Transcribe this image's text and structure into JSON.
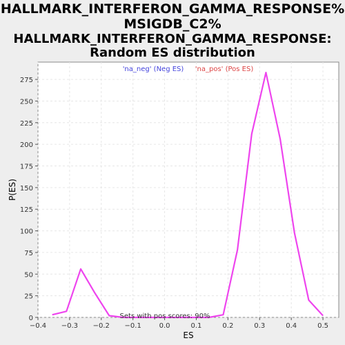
{
  "titles": {
    "line1": "HALLMARK_INTERFERON_GAMMA_RESPONSE%",
    "line2": "MSIGDB_C2%",
    "line3": "HALLMARK_INTERFERON_GAMMA_RESPONSE:",
    "line4": "Random ES distribution"
  },
  "chart_data": {
    "type": "line",
    "xlabel": "ES",
    "ylabel": "P(ES)",
    "xlim": [
      -0.4,
      0.55
    ],
    "ylim": [
      0,
      295
    ],
    "xticks": [
      "−0.4",
      "−0.3",
      "−0.2",
      "−0.1",
      "0.0",
      "0.1",
      "0.2",
      "0.3",
      "0.4",
      "0.5"
    ],
    "xtick_values": [
      -0.4,
      -0.3,
      -0.2,
      -0.1,
      0.0,
      0.1,
      0.2,
      0.3,
      0.4,
      0.5
    ],
    "yticks": [
      "0",
      "25",
      "50",
      "75",
      "100",
      "125",
      "150",
      "175",
      "200",
      "225",
      "250",
      "275"
    ],
    "ytick_values": [
      0,
      25,
      50,
      75,
      100,
      125,
      150,
      175,
      200,
      225,
      250,
      275
    ],
    "grid": true,
    "legend_position": "top-center",
    "legend": [
      {
        "label": "'na_neg' (Neg ES)",
        "color": "#4444dd"
      },
      {
        "label": "'na_pos' (Pos ES)",
        "color": "#dd4444"
      }
    ],
    "annotation": "Sets with pos scores: 90%",
    "series": [
      {
        "color": "#ee44ee",
        "x": [
          -0.355,
          -0.31,
          -0.265,
          -0.22,
          -0.175,
          -0.13,
          -0.085,
          -0.04,
          0.005,
          0.05,
          0.095,
          0.14,
          0.185,
          0.23,
          0.275,
          0.32,
          0.365,
          0.41,
          0.455,
          0.5
        ],
        "y": [
          3,
          7,
          56,
          28,
          2,
          0,
          0,
          0,
          0,
          0,
          0,
          0,
          3,
          78,
          212,
          283,
          206,
          98,
          20,
          2
        ]
      }
    ]
  }
}
